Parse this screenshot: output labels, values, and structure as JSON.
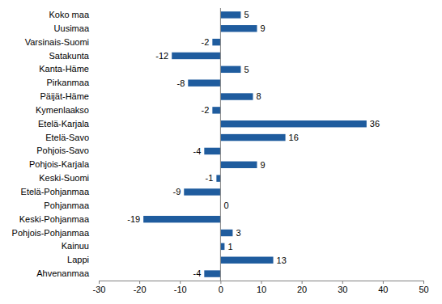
{
  "chart_data": {
    "type": "bar",
    "orientation": "horizontal",
    "categories": [
      "Koko maa",
      "Uusimaa",
      "Varsinais-Suomi",
      "Satakunta",
      "Kanta-Häme",
      "Pirkanmaa",
      "Päijät-Häme",
      "Kymenlaakso",
      "Etelä-Karjala",
      "Etelä-Savo",
      "Pohjois-Savo",
      "Pohjois-Karjala",
      "Keski-Suomi",
      "Etelä-Pohjanmaa",
      "Pohjanmaa",
      "Keski-Pohjanmaa",
      "Pohjois-Pohjanmaa",
      "Kainuu",
      "Lappi",
      "Ahvenanmaa"
    ],
    "values": [
      5,
      9,
      -2,
      -12,
      5,
      -8,
      8,
      -2,
      36,
      16,
      -4,
      9,
      -1,
      -9,
      0,
      -19,
      3,
      1,
      13,
      -4
    ],
    "color": "#1f5c9e",
    "xlim": [
      -30,
      50
    ],
    "xticks": [
      -30,
      -20,
      -10,
      0,
      10,
      20,
      30,
      40,
      50
    ],
    "grid": false,
    "data_labels": true
  }
}
